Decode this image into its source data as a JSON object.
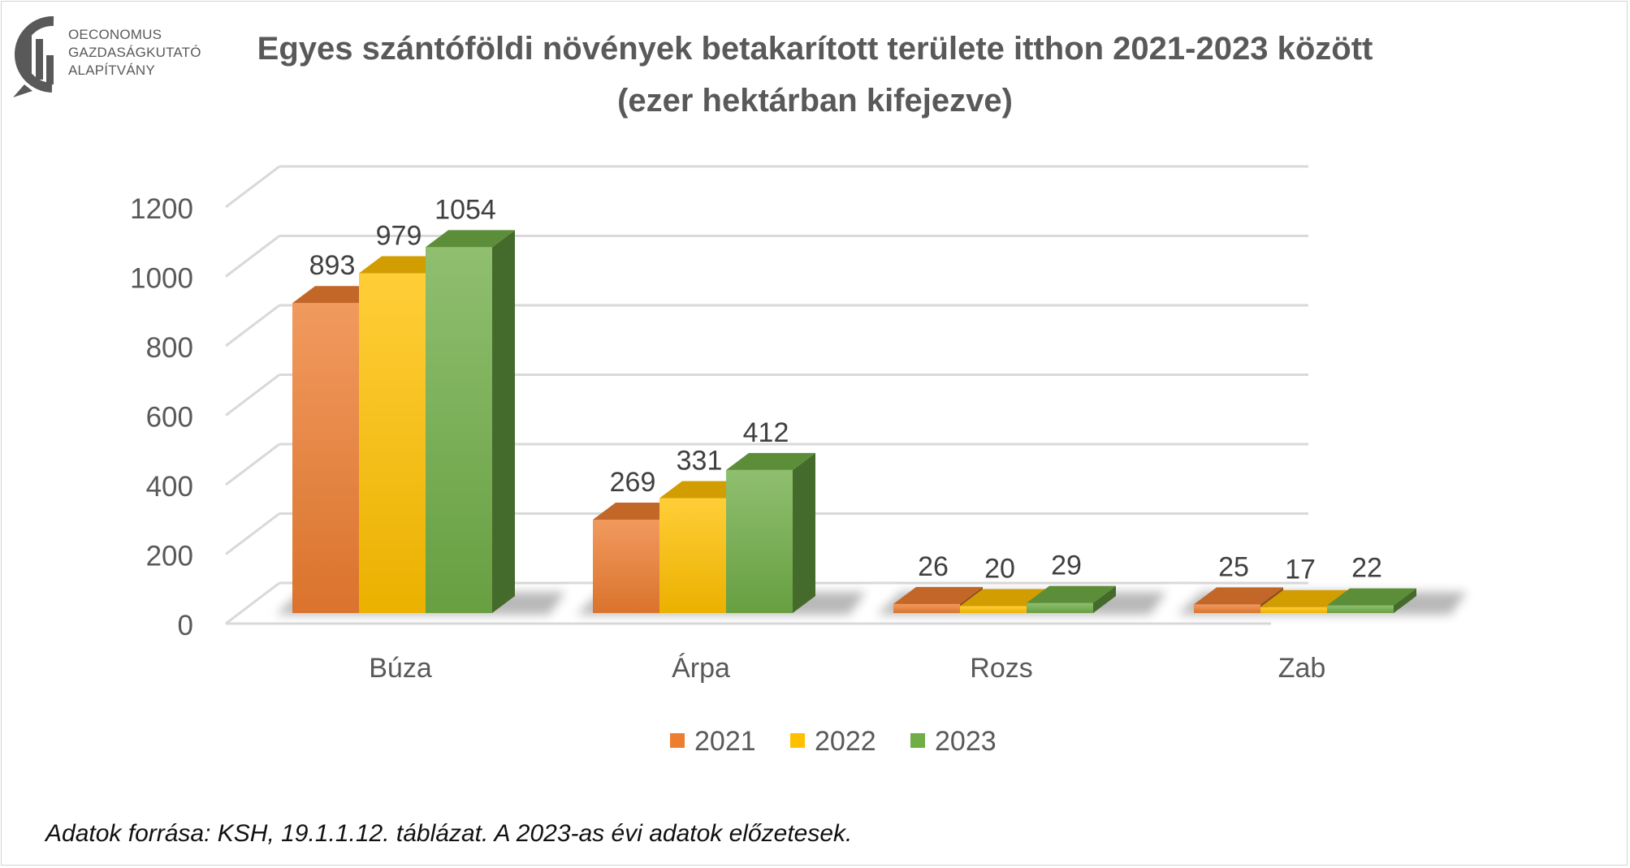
{
  "logo": {
    "line1": "OECONOMUS",
    "line2": "GAZDASÁGKUTATÓ",
    "line3": "ALAPÍTVÁNY"
  },
  "title_line1": "Egyes szántóföldi növények betakarított területe itthon 2021-2023 között",
  "title_line2": "(ezer hektárban kifejezve)",
  "source_note": "Adatok forrása: KSH, 19.1.1.12. táblázat. A 2023-as évi adatok előzetesek.",
  "chart_data": {
    "type": "bar",
    "title": "Egyes szántóföldi növények betakarított területe itthon 2021-2023 között (ezer hektárban kifejezve)",
    "categories": [
      "Búza",
      "Árpa",
      "Rozs",
      "Zab"
    ],
    "series": [
      {
        "name": "2021",
        "values": [
          893,
          269,
          26,
          25
        ],
        "color": "#ED7D31"
      },
      {
        "name": "2022",
        "values": [
          979,
          331,
          20,
          17
        ],
        "color": "#FFC000"
      },
      {
        "name": "2023",
        "values": [
          1054,
          412,
          29,
          22
        ],
        "color": "#70AD47"
      }
    ],
    "yticks": [
      0,
      200,
      400,
      600,
      800,
      1000,
      1200
    ],
    "ylim": [
      0,
      1200
    ],
    "grid": true,
    "legend_position": "bottom",
    "data_labels": true,
    "style": "3d-clustered-column"
  }
}
